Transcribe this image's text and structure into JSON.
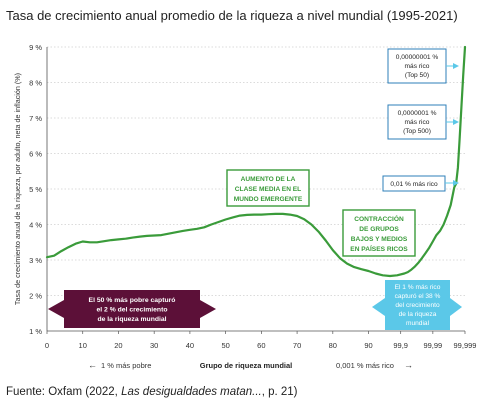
{
  "title": "Tasa de crecimiento anual promedio de la riqueza a nivel mundial (1995-2021)",
  "source": {
    "prefix": "Fuente: Oxfam (2022, ",
    "italic": "Las desigualdades matan...",
    "suffix": ", p. 21)"
  },
  "colors": {
    "line": "#3a9b3a",
    "grid": "#cfcfcf",
    "axis": "#555555",
    "maroon": "#5c1038",
    "cyan": "#5bc8e8",
    "green_box": "#3a9b3a",
    "callout": "#2e7fb8"
  },
  "chart_data": {
    "type": "line",
    "title": "Tasa de crecimiento anual promedio de la riqueza a nivel mundial (1995-2021)",
    "ylabel": "Tasa de crecimiento anual de la riqueza, por adulto, neta de inflación (%)",
    "xlabel": "Grupo de riqueza mundial",
    "ylim": [
      1,
      9
    ],
    "yticks": [
      "1 %",
      "2 %",
      "3 %",
      "4 %",
      "5 %",
      "6 %",
      "7 %",
      "8 %",
      "9 %"
    ],
    "xtick_labels": [
      "0",
      "10",
      "20",
      "30",
      "40",
      "50",
      "60",
      "70",
      "80",
      "90",
      "99,9",
      "99,99",
      "99,999"
    ],
    "x_axis_notes": {
      "left": "1 % más pobre",
      "right": "0,001 % más rico"
    },
    "grid": true,
    "series": [
      {
        "points": [
          [
            0,
            3.08
          ],
          [
            2,
            3.12
          ],
          [
            4,
            3.25
          ],
          [
            6,
            3.36
          ],
          [
            8,
            3.46
          ],
          [
            10,
            3.52
          ],
          [
            12,
            3.5
          ],
          [
            14,
            3.5
          ],
          [
            16,
            3.53
          ],
          [
            18,
            3.56
          ],
          [
            20,
            3.58
          ],
          [
            22,
            3.6
          ],
          [
            24,
            3.63
          ],
          [
            26,
            3.66
          ],
          [
            28,
            3.68
          ],
          [
            30,
            3.69
          ],
          [
            32,
            3.7
          ],
          [
            34,
            3.74
          ],
          [
            36,
            3.78
          ],
          [
            38,
            3.82
          ],
          [
            40,
            3.85
          ],
          [
            42,
            3.88
          ],
          [
            44,
            3.92
          ],
          [
            46,
            4.0
          ],
          [
            48,
            4.07
          ],
          [
            50,
            4.14
          ],
          [
            52,
            4.2
          ],
          [
            54,
            4.25
          ],
          [
            56,
            4.27
          ],
          [
            58,
            4.28
          ],
          [
            60,
            4.28
          ],
          [
            62,
            4.29
          ],
          [
            64,
            4.3
          ],
          [
            66,
            4.3
          ],
          [
            68,
            4.28
          ],
          [
            70,
            4.24
          ],
          [
            72,
            4.15
          ],
          [
            74,
            4.0
          ],
          [
            76,
            3.8
          ],
          [
            78,
            3.55
          ],
          [
            80,
            3.28
          ],
          [
            82,
            3.05
          ],
          [
            84,
            2.9
          ],
          [
            86,
            2.8
          ],
          [
            88,
            2.74
          ],
          [
            90,
            2.69
          ],
          [
            92,
            2.62
          ],
          [
            94,
            2.57
          ],
          [
            96,
            2.55
          ],
          [
            98,
            2.57
          ],
          [
            100,
            2.62
          ],
          [
            101,
            2.66
          ],
          [
            102,
            2.73
          ],
          [
            103,
            2.82
          ],
          [
            104,
            2.93
          ],
          [
            105,
            3.06
          ],
          [
            106,
            3.2
          ],
          [
            107,
            3.35
          ],
          [
            108,
            3.52
          ],
          [
            109,
            3.7
          ],
          [
            110,
            3.82
          ],
          [
            111,
            4.0
          ],
          [
            112,
            4.25
          ],
          [
            113,
            4.55
          ],
          [
            113.5,
            4.8
          ],
          [
            114,
            5.05
          ],
          [
            114.5,
            5.15
          ],
          [
            115,
            5.6
          ],
          [
            115.5,
            6.4
          ],
          [
            116,
            7.3
          ],
          [
            116.5,
            8.2
          ],
          [
            117,
            9.0
          ]
        ]
      }
    ],
    "annotations": {
      "maroon_box": [
        "El 50 % más pobre capturó",
        "el 2 % del crecimiento",
        "de la riqueza mundial"
      ],
      "cyan_box": [
        "El 1 % más rico",
        "capturó el 38 %",
        "del crecimiento",
        "de la riqueza",
        "mundial"
      ],
      "green_box_1": [
        "AUMENTO DE LA",
        "CLASE MEDIA EN EL",
        "MUNDO EMERGENTE"
      ],
      "green_box_2": [
        "CONTRACCIÓN",
        "DE GRUPOS",
        "BAJOS Y MEDIOS",
        "EN PAÍSES RICOS"
      ],
      "callout_top50": [
        "0,00000001 %",
        "más rico",
        "(Top 50)"
      ],
      "callout_top500": [
        "0,0000001 %",
        "más rico",
        "(Top 500)"
      ],
      "callout_001": [
        "0,01 % más rico"
      ]
    }
  }
}
